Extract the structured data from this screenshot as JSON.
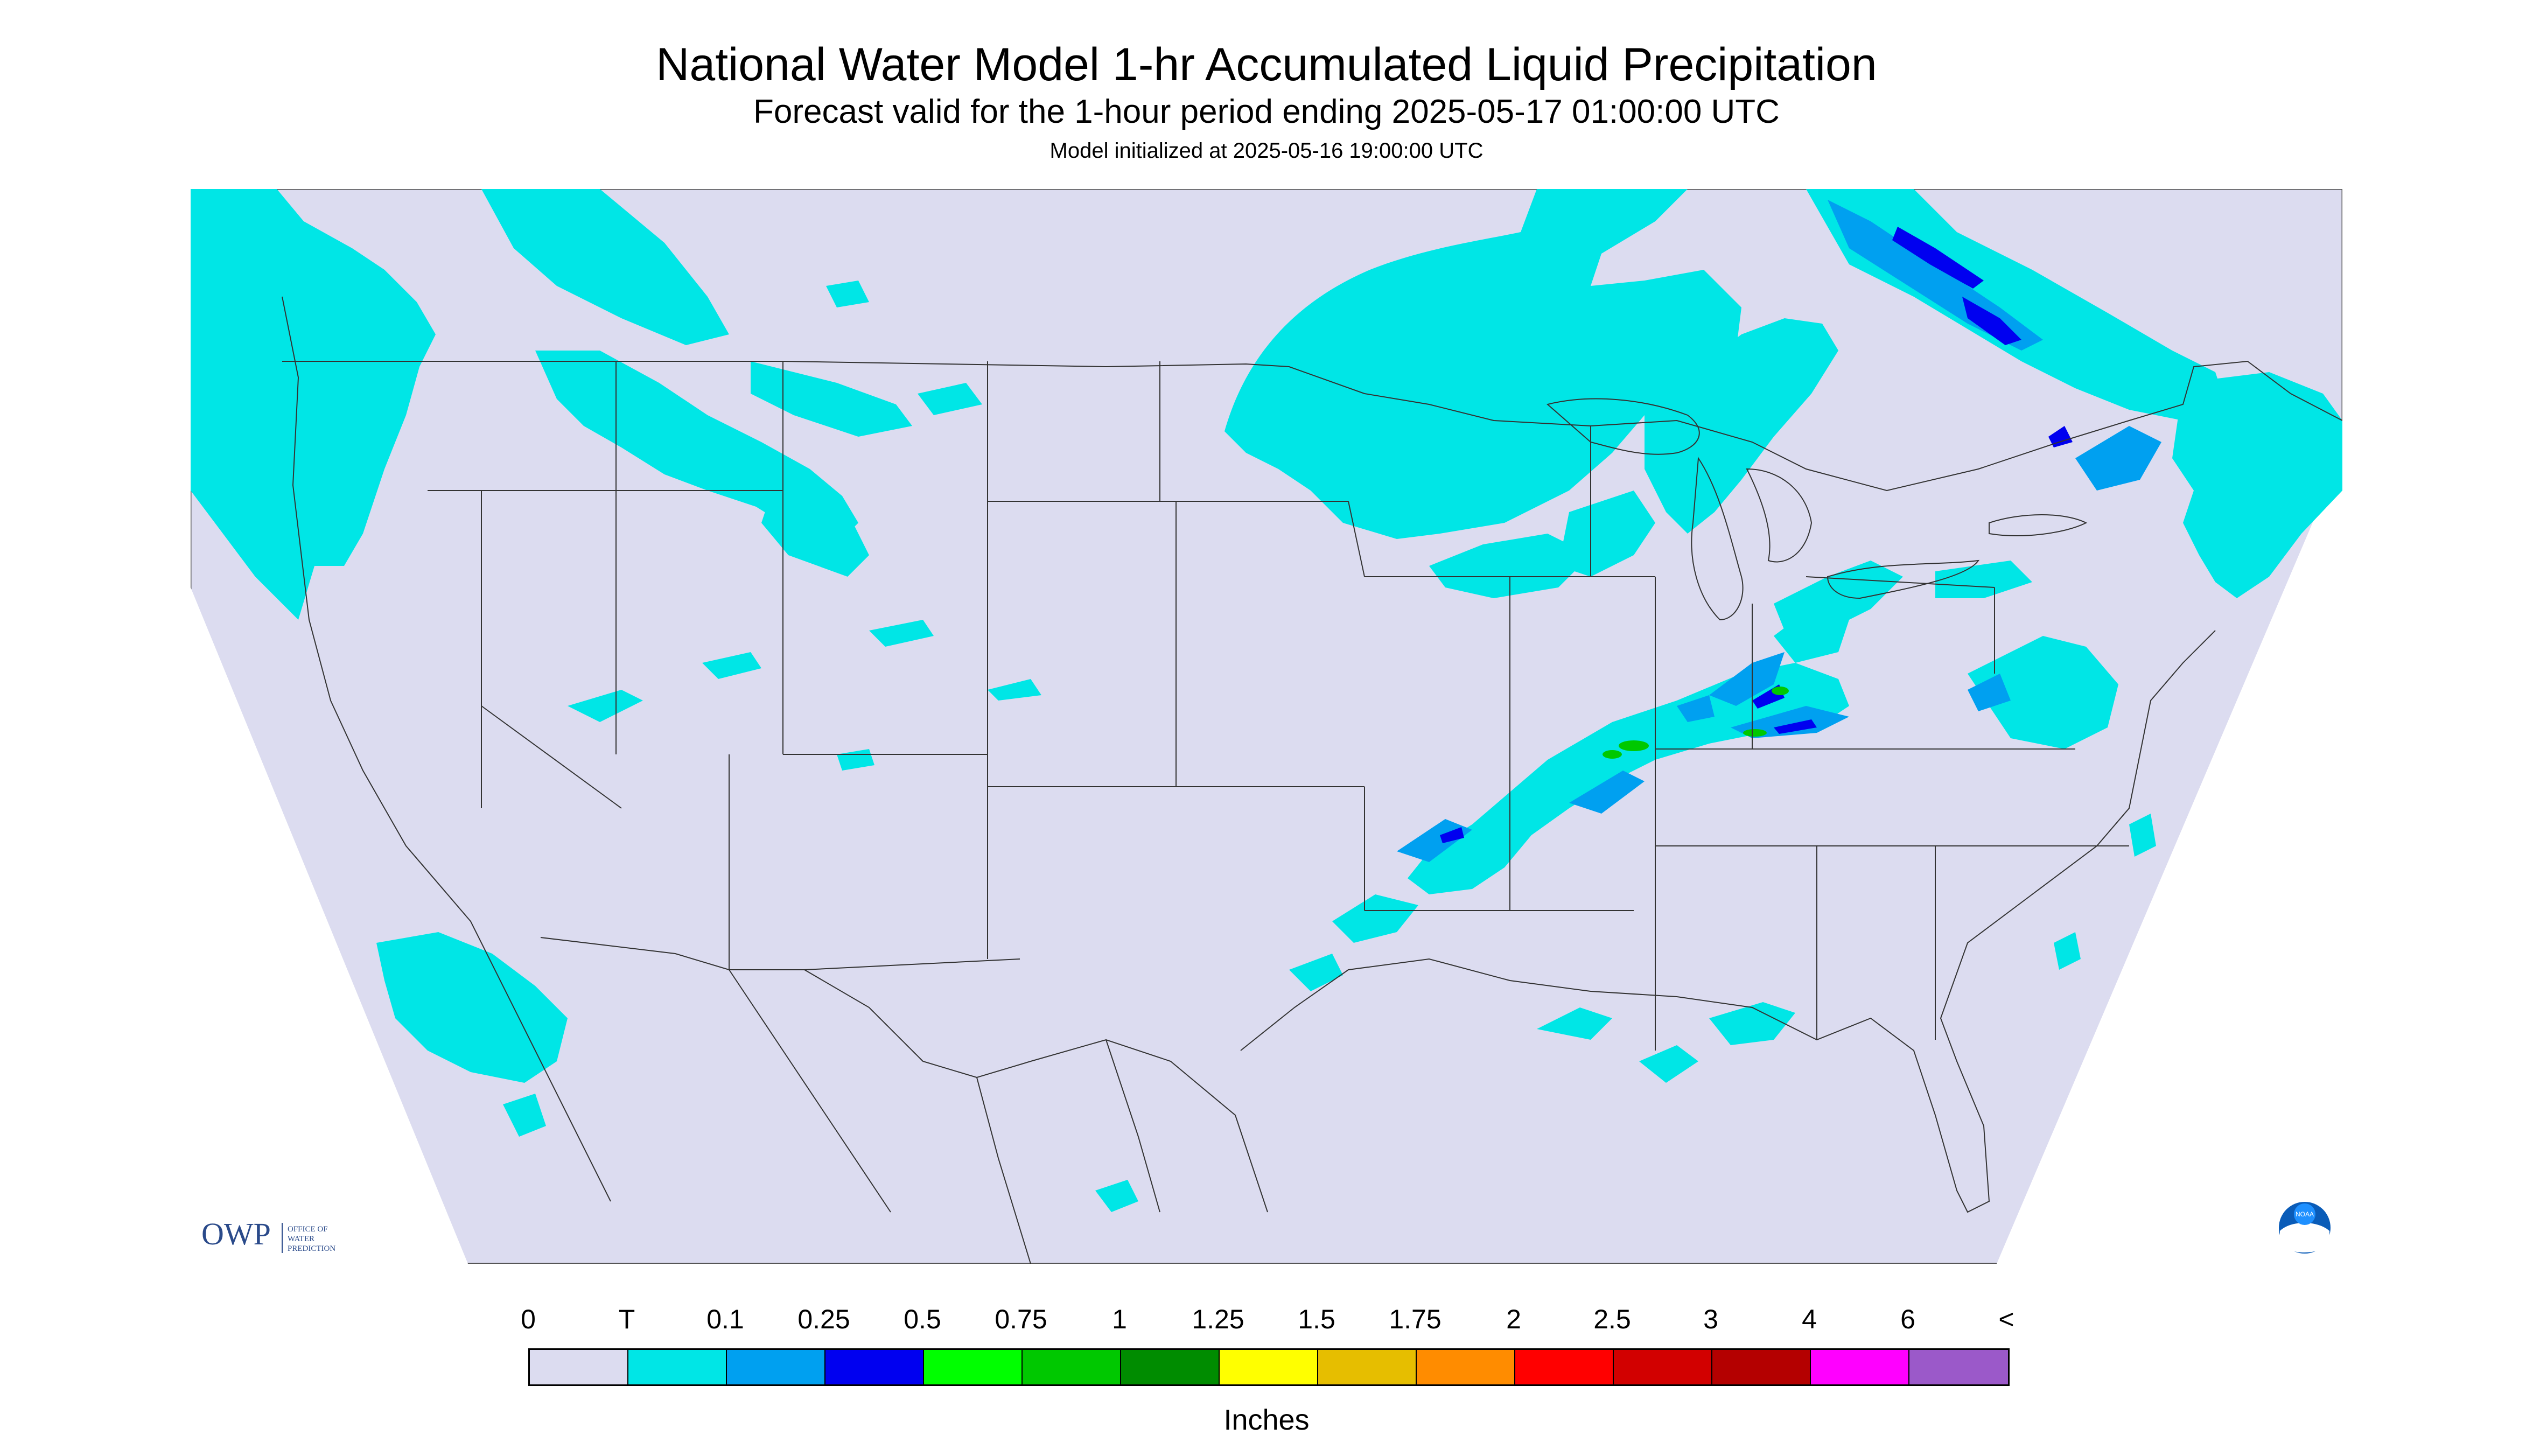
{
  "header": {
    "title": "National Water Model 1-hr Accumulated Liquid Precipitation",
    "subtitle": "Forecast valid for the 1-hour period ending 2025-05-17 01:00:00 UTC",
    "init": "Model initialized at 2025-05-16 19:00:00 UTC"
  },
  "logos": {
    "owp_text": "OWP",
    "owp_subtext": [
      "OFFICE OF",
      "WATER",
      "PREDICTION"
    ],
    "noaa_text": "NOAA"
  },
  "legend": {
    "labels": [
      "0",
      "T",
      "0.1",
      "0.25",
      "0.5",
      "0.75",
      "1",
      "1.25",
      "1.5",
      "1.75",
      "2",
      "2.5",
      "3",
      "4",
      "6",
      "<"
    ],
    "colors": [
      "#dcdcf0",
      "#00e6e6",
      "#00a0f0",
      "#0000f0",
      "#00ff00",
      "#00c800",
      "#008c00",
      "#ffff00",
      "#e6be00",
      "#ff8c00",
      "#ff0000",
      "#d20000",
      "#b40000",
      "#ff00ff",
      "#9b59c9"
    ],
    "units": "Inches"
  },
  "colors": {
    "background": "#dcdcf0",
    "trace": "#00e6e6",
    "light": "#00a0f0",
    "moderate": "#0000f0",
    "heavy": "#00c800",
    "boundaries": "#333333"
  }
}
